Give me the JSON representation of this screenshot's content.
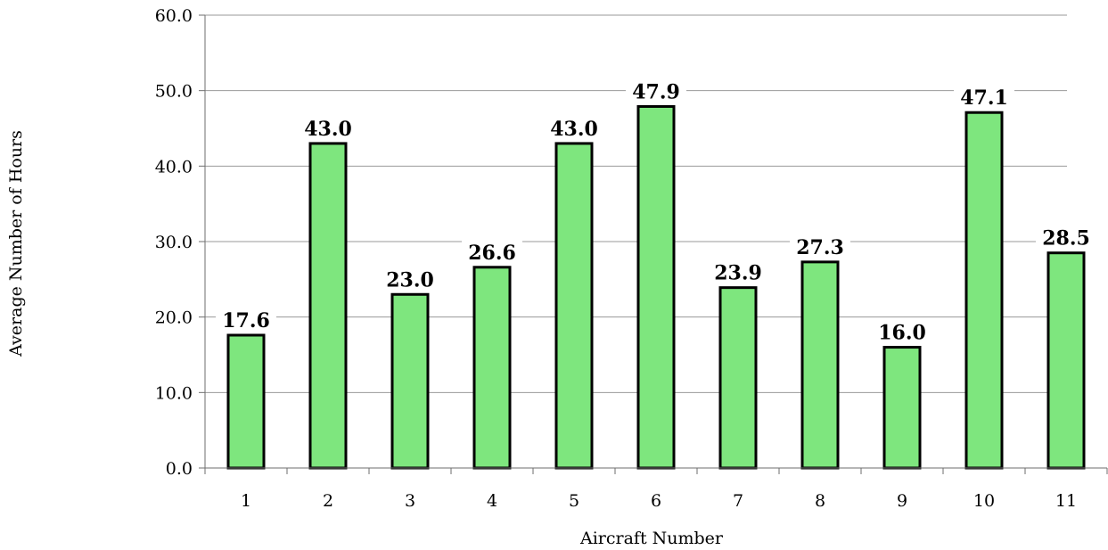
{
  "chart_data": {
    "type": "bar",
    "title": "",
    "xlabel": "Aircraft Number",
    "ylabel": "Average Number of Hours",
    "categories": [
      "1",
      "2",
      "3",
      "4",
      "5",
      "6",
      "7",
      "8",
      "9",
      "10",
      "11"
    ],
    "values": [
      17.6,
      43.0,
      23.0,
      26.6,
      43.0,
      47.9,
      23.9,
      27.3,
      16.0,
      47.1,
      28.5
    ],
    "data_labels": [
      "17.6",
      "43.0",
      "23.0",
      "26.6",
      "43.0",
      "47.9",
      "23.9",
      "27.3",
      "16.0",
      "47.1",
      "28.5"
    ],
    "ylim": [
      0,
      60
    ],
    "yticks": [
      0,
      10,
      20,
      30,
      40,
      50,
      60
    ],
    "ytick_labels": [
      "0.0",
      "10.0",
      "20.0",
      "30.0",
      "40.0",
      "50.0",
      "60.0"
    ],
    "grid": true,
    "legend": "none",
    "colors": {
      "bar_fill": "#7ee67e",
      "bar_stroke": "#000000",
      "grid": "#9a9a9a"
    }
  }
}
